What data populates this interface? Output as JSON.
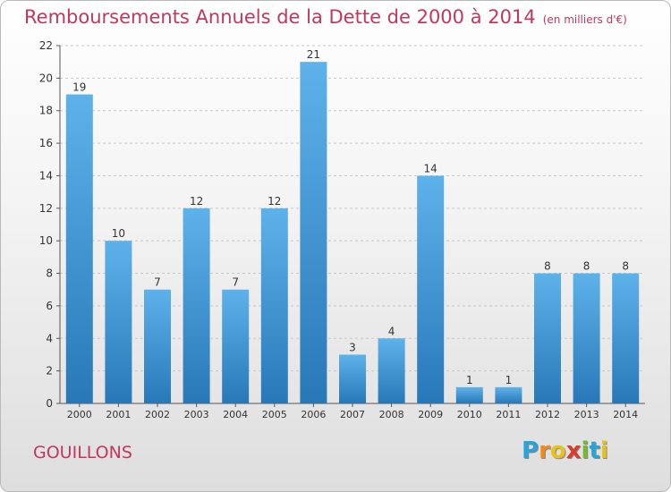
{
  "title": "Remboursements Annuels de la Dette de 2000 à 2014",
  "subtitle": "(en milliers d'€)",
  "commune": "GOUILLONS",
  "logo": {
    "letters": [
      "P",
      "r",
      "o",
      "x",
      "i",
      "t",
      "i"
    ],
    "colors": [
      "#2aa4d8",
      "#f08a1c",
      "#e8c21a",
      "#d93b2f",
      "#7ab830",
      "#2aa4d8",
      "#e8c21a"
    ]
  },
  "colors": {
    "title": "#c0385c",
    "bar_light": "#5eb2ea",
    "bar_dark": "#2878b8",
    "grid": "#c8c8c8"
  },
  "chart_data": {
    "type": "bar",
    "title": "Remboursements Annuels de la Dette de 2000 à 2014",
    "subtitle": "(en milliers d'€)",
    "categories": [
      "2000",
      "2001",
      "2002",
      "2003",
      "2004",
      "2005",
      "2006",
      "2007",
      "2008",
      "2009",
      "2010",
      "2011",
      "2012",
      "2013",
      "2014"
    ],
    "values": [
      19,
      10,
      7,
      12,
      7,
      12,
      21,
      3,
      4,
      14,
      1,
      1,
      8,
      8,
      8
    ],
    "ylim": [
      0,
      22
    ],
    "yticks": [
      0,
      2,
      4,
      6,
      8,
      10,
      12,
      14,
      16,
      18,
      20,
      22
    ],
    "grid": true,
    "xlabel": "",
    "ylabel": ""
  }
}
